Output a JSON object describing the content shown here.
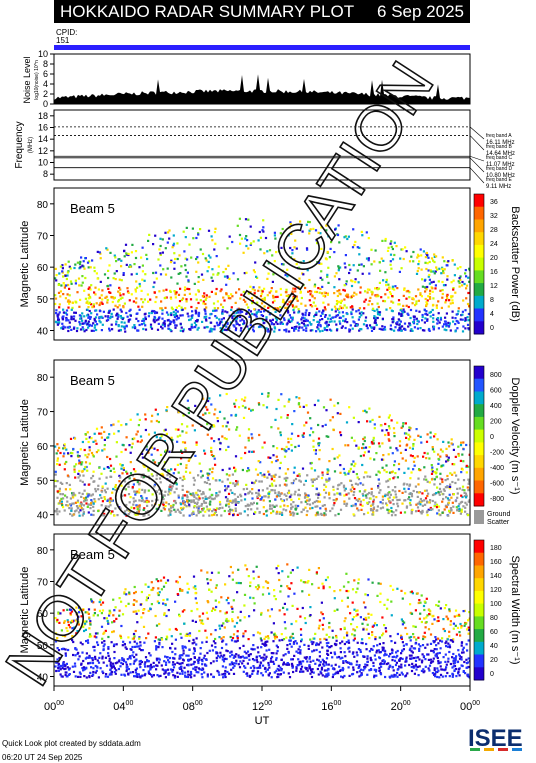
{
  "title": "HOKKAIDO RADAR SUMMARY PLOT",
  "date": "6 Sep 2025",
  "cpid": {
    "label": "CPID:",
    "value": "151"
  },
  "noise": {
    "ylabel": "Noise Level",
    "ylabel_sub": "log10(noise) 10^n",
    "ticks": [
      "10",
      "8",
      "6",
      "4",
      "2",
      "0"
    ]
  },
  "frequency": {
    "ylabel": "Frequency",
    "unit": "(MHz)",
    "ticks": [
      "18",
      "16",
      "14",
      "12",
      "10",
      "8"
    ],
    "bands": [
      {
        "name": "freq band A",
        "value": "16.11 MHz",
        "mhz": 16.11
      },
      {
        "name": "freq band B",
        "value": "14.64 MHz",
        "mhz": 14.64
      },
      {
        "name": "freq band C",
        "value": "11.07 MHz",
        "mhz": 11.07
      },
      {
        "name": "freq band D",
        "value": "10.80 MHz",
        "mhz": 10.8
      },
      {
        "name": "freq band E",
        "value": "9.11 MHz",
        "mhz": 9.11
      }
    ]
  },
  "panels": [
    {
      "beam": "Beam  5",
      "ylabel": "Magnetic Latitude",
      "cbar_label": "Backscatter Power (dB)",
      "cbar_ticks": [
        "36",
        "32",
        "28",
        "24",
        "20",
        "16",
        "12",
        "8",
        "4",
        "0"
      ],
      "cbar_colors": [
        "#ff0000",
        "#ff6600",
        "#ffa500",
        "#ffd700",
        "#ffff00",
        "#c8ff00",
        "#66dd22",
        "#22aa44",
        "#00aacc",
        "#2233ff",
        "#2200cc"
      ]
    },
    {
      "beam": "Beam  5",
      "ylabel": "Magnetic Latitude",
      "cbar_label": "Doppler Velocity (m s⁻¹)",
      "cbar_ticks": [
        "800",
        "600",
        "400",
        "200",
        "0",
        "-200",
        "-400",
        "-600",
        "-800"
      ],
      "cbar_colors": [
        "#2200cc",
        "#2255ff",
        "#00aacc",
        "#22aa44",
        "#66dd22",
        "#ccff00",
        "#ffff00",
        "#ffd700",
        "#ffa500",
        "#ff6600",
        "#ff0000"
      ],
      "ground_label": "Ground",
      "ground_label2": "Scatter"
    },
    {
      "beam": "Beam  5",
      "ylabel": "Magnetic Latitude",
      "cbar_label": "Spectral Width (m s⁻¹)",
      "cbar_ticks": [
        "180",
        "160",
        "140",
        "120",
        "100",
        "80",
        "60",
        "40",
        "20",
        "0"
      ],
      "cbar_colors": [
        "#ff0000",
        "#ff6600",
        "#ffa500",
        "#ffd700",
        "#ffff00",
        "#c8ff00",
        "#66dd22",
        "#22aa44",
        "#00aacc",
        "#2233ff",
        "#2200cc"
      ]
    }
  ],
  "chart_data": {
    "type": "heatmap",
    "title": "HOKKAIDO RADAR SUMMARY PLOT",
    "xlabel": "UT",
    "x_ticks": [
      "00",
      "04",
      "08",
      "12",
      "16",
      "20",
      "00"
    ],
    "x_tick_sup": "00",
    "ylim": [
      37,
      85
    ],
    "y_ticks": [
      80,
      70,
      60,
      50,
      40
    ],
    "noise_ylim": [
      0,
      10
    ],
    "freq_ylim": [
      7,
      19
    ]
  },
  "footer": {
    "line1": "Quick Look plot created by sddata.adm",
    "line2": "06:20 UT 24 Sep 2025"
  },
  "watermark": "NOT FOR PUBLICATION",
  "logo_text": "ISEE",
  "colors": {
    "ground": "#9a9a9a",
    "cpid_bar": "#2b1fff"
  }
}
